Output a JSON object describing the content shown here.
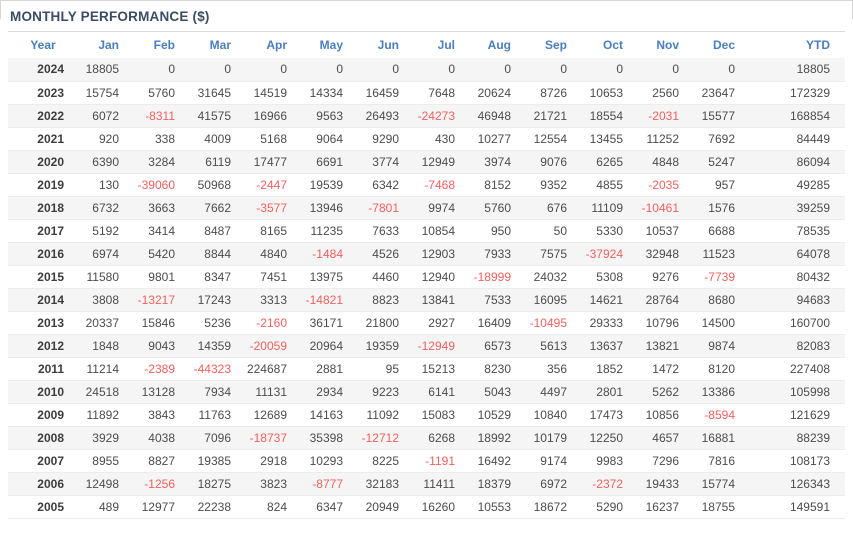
{
  "panel": {
    "title": "MONTHLY PERFORMANCE ($)"
  },
  "colors": {
    "title_text": "#3c4d63",
    "header_text": "#4a7ebd",
    "cell_text": "#4c4c4c",
    "negative_text": "#f2605f",
    "row_stripe": "#f5f5f5",
    "rule": "#dadada"
  },
  "table": {
    "columns": [
      "Year",
      "Jan",
      "Feb",
      "Mar",
      "Apr",
      "May",
      "Jun",
      "Jul",
      "Aug",
      "Sep",
      "Oct",
      "Nov",
      "Dec",
      "YTD"
    ],
    "rows": [
      {
        "year": "2024",
        "values": [
          18805,
          0,
          0,
          0,
          0,
          0,
          0,
          0,
          0,
          0,
          0,
          0,
          18805
        ]
      },
      {
        "year": "2023",
        "values": [
          15754,
          5760,
          31645,
          14519,
          14334,
          16459,
          7648,
          20624,
          8726,
          10653,
          2560,
          23647,
          172329
        ]
      },
      {
        "year": "2022",
        "values": [
          6072,
          -8311,
          41575,
          16966,
          9563,
          26493,
          -24273,
          46948,
          21721,
          18554,
          -2031,
          15577,
          168854
        ]
      },
      {
        "year": "2021",
        "values": [
          920,
          338,
          4009,
          5168,
          9064,
          9290,
          430,
          10277,
          12554,
          13455,
          11252,
          7692,
          84449
        ]
      },
      {
        "year": "2020",
        "values": [
          6390,
          3284,
          6119,
          17477,
          6691,
          3774,
          12949,
          3974,
          9076,
          6265,
          4848,
          5247,
          86094
        ]
      },
      {
        "year": "2019",
        "values": [
          130,
          -39060,
          50968,
          -2447,
          19539,
          6342,
          -7468,
          8152,
          9352,
          4855,
          -2035,
          957,
          49285
        ]
      },
      {
        "year": "2018",
        "values": [
          6732,
          3663,
          7662,
          -3577,
          13946,
          -7801,
          9974,
          5760,
          676,
          11109,
          -10461,
          1576,
          39259
        ]
      },
      {
        "year": "2017",
        "values": [
          5192,
          3414,
          8487,
          8165,
          11235,
          7633,
          10854,
          950,
          50,
          5330,
          10537,
          6688,
          78535
        ]
      },
      {
        "year": "2016",
        "values": [
          6974,
          5420,
          8844,
          4840,
          -1484,
          4526,
          12903,
          7933,
          7575,
          -37924,
          32948,
          11523,
          64078
        ]
      },
      {
        "year": "2015",
        "values": [
          11580,
          9801,
          8347,
          7451,
          13975,
          4460,
          12940,
          -18999,
          24032,
          5308,
          9276,
          -7739,
          80432
        ]
      },
      {
        "year": "2014",
        "values": [
          3808,
          -13217,
          17243,
          3313,
          -14821,
          8823,
          13841,
          7533,
          16095,
          14621,
          28764,
          8680,
          94683
        ]
      },
      {
        "year": "2013",
        "values": [
          20337,
          15846,
          5236,
          -2160,
          36171,
          21800,
          2927,
          16409,
          -10495,
          29333,
          10796,
          14500,
          160700
        ]
      },
      {
        "year": "2012",
        "values": [
          1848,
          9043,
          14359,
          -20059,
          20964,
          19359,
          -12949,
          6573,
          5613,
          13637,
          13821,
          9874,
          82083
        ]
      },
      {
        "year": "2011",
        "values": [
          11214,
          -2389,
          -44323,
          224687,
          2881,
          95,
          15213,
          8230,
          356,
          1852,
          1472,
          8120,
          227408
        ]
      },
      {
        "year": "2010",
        "values": [
          24518,
          13128,
          7934,
          11131,
          2934,
          9223,
          6141,
          5043,
          4497,
          2801,
          5262,
          13386,
          105998
        ]
      },
      {
        "year": "2009",
        "values": [
          11892,
          3843,
          11763,
          12689,
          14163,
          11092,
          15083,
          10529,
          10840,
          17473,
          10856,
          -8594,
          121629
        ]
      },
      {
        "year": "2008",
        "values": [
          3929,
          4038,
          7096,
          -18737,
          35398,
          -12712,
          6268,
          18992,
          10179,
          12250,
          4657,
          16881,
          88239
        ]
      },
      {
        "year": "2007",
        "values": [
          8955,
          8827,
          19385,
          2918,
          10293,
          8225,
          -1191,
          16492,
          9174,
          9983,
          7296,
          7816,
          108173
        ]
      },
      {
        "year": "2006",
        "values": [
          12498,
          -1256,
          18275,
          3823,
          -8777,
          32183,
          11411,
          18379,
          6972,
          -2372,
          19433,
          15774,
          126343
        ]
      },
      {
        "year": "2005",
        "values": [
          489,
          12977,
          22238,
          824,
          6347,
          20949,
          16260,
          10553,
          18672,
          5290,
          16237,
          18755,
          149591
        ]
      }
    ]
  }
}
